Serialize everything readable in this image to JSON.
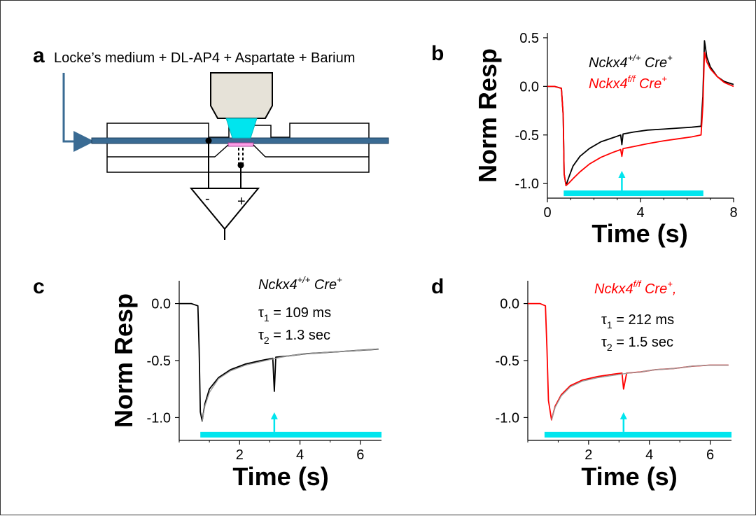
{
  "panel_labels": {
    "a": "a",
    "b": "b",
    "c": "c",
    "d": "d"
  },
  "schematic": {
    "solution_label": "Locke’s medium + DL-AP4 + Aspartate + Barium",
    "amp_minus": "-",
    "amp_plus": "+",
    "colors": {
      "objective": "#e6e2d8",
      "light": "#00e5ee",
      "perfusion": "#3a6b93",
      "tissue": "#ff9ee8"
    }
  },
  "legend": {
    "wt": {
      "gene": "Nckx4",
      "sup": "+/+",
      "cre": " Cre",
      "cre_sup": "+",
      "color": "#000000"
    },
    "ko": {
      "gene": "Nckx4",
      "sup": "f/f",
      "cre": " Cre",
      "cre_sup": "+",
      "color": "#ff0000"
    },
    "ko_d_suffix": ","
  },
  "fits": {
    "c": {
      "tau1_sym": "τ",
      "tau1_sub": "1",
      "tau1_text": " = 109 ms",
      "tau2_sym": "τ",
      "tau2_sub": "2",
      "tau2_text": " = 1.3 sec"
    },
    "d": {
      "tau1_sym": "τ",
      "tau1_sub": "1",
      "tau1_text": " = 212 ms",
      "tau2_sym": "τ",
      "tau2_sub": "2",
      "tau2_text": " = 1.5 sec"
    }
  },
  "chart_data": [
    {
      "panel": "b",
      "type": "line",
      "xlabel": "Time (s)",
      "ylabel": "Norm Resp",
      "xlim": [
        0,
        8
      ],
      "ylim": [
        -1.15,
        0.55
      ],
      "xticks": [
        0,
        4,
        8
      ],
      "yticks": [
        0.5,
        0.0,
        -0.5,
        -1.0
      ],
      "ytick_labels": [
        "0.5",
        "0.0",
        "-0.5",
        "-1.0"
      ],
      "stimulus": {
        "start": 0.7,
        "end": 6.7,
        "y": -1.1,
        "color": "#00e5ee"
      },
      "arrow": {
        "x": 3.2,
        "color": "#00e5ee"
      },
      "series": [
        {
          "name": "Nckx4+/+ Cre+",
          "color": "#000000",
          "x": [
            0,
            0.3,
            0.6,
            0.68,
            0.72,
            0.8,
            0.9,
            1.1,
            1.4,
            1.8,
            2.3,
            2.8,
            3.15,
            3.2,
            3.25,
            3.7,
            4.3,
            5.0,
            5.6,
            6.2,
            6.6,
            6.68,
            6.75,
            6.85,
            7.0,
            7.3,
            7.6,
            8.0
          ],
          "y": [
            0.0,
            0.0,
            -0.02,
            -0.3,
            -0.9,
            -1.02,
            -0.95,
            -0.82,
            -0.72,
            -0.64,
            -0.57,
            -0.53,
            -0.5,
            -0.6,
            -0.49,
            -0.47,
            -0.45,
            -0.44,
            -0.43,
            -0.42,
            -0.41,
            -0.1,
            0.47,
            0.3,
            0.2,
            0.1,
            0.05,
            0.02
          ]
        },
        {
          "name": "Nckx4f/f Cre+",
          "color": "#ff0000",
          "x": [
            0,
            0.3,
            0.6,
            0.68,
            0.72,
            0.8,
            0.9,
            1.1,
            1.4,
            1.8,
            2.3,
            2.8,
            3.15,
            3.2,
            3.25,
            3.7,
            4.3,
            5.0,
            5.6,
            6.2,
            6.6,
            6.68,
            6.75,
            6.85,
            7.0,
            7.3,
            7.6,
            8.0
          ],
          "y": [
            0.0,
            0.0,
            -0.02,
            -0.3,
            -0.9,
            -1.02,
            -1.0,
            -0.95,
            -0.88,
            -0.8,
            -0.73,
            -0.68,
            -0.65,
            -0.72,
            -0.64,
            -0.62,
            -0.59,
            -0.56,
            -0.54,
            -0.52,
            -0.5,
            -0.2,
            0.35,
            0.25,
            0.18,
            0.1,
            0.04,
            0.0
          ]
        }
      ]
    },
    {
      "panel": "c",
      "type": "line",
      "xlabel": "Time (s)",
      "ylabel": "Norm Resp",
      "xlim": [
        0,
        6.7
      ],
      "ylim": [
        -1.2,
        0.2
      ],
      "xticks": [
        2,
        4,
        6
      ],
      "yticks": [
        0.0,
        -0.5,
        -1.0
      ],
      "ytick_labels": [
        "0.0",
        "-0.5",
        "-1.0"
      ],
      "stimulus": {
        "start": 0.7,
        "end": 6.7,
        "y": -1.15,
        "color": "#00e5ee"
      },
      "arrow": {
        "x": 3.15,
        "color": "#00e5ee"
      },
      "series": [
        {
          "name": "Nckx4+/+ Cre+",
          "color": "#000000",
          "x": [
            0,
            0.4,
            0.62,
            0.66,
            0.7,
            0.76,
            0.85,
            1.0,
            1.3,
            1.7,
            2.2,
            2.7,
            3.1,
            3.15,
            3.2,
            3.6,
            4.2,
            4.8,
            5.4,
            6.0,
            6.6
          ],
          "y": [
            0.0,
            0.0,
            -0.02,
            -0.4,
            -0.95,
            -1.03,
            -0.88,
            -0.75,
            -0.65,
            -0.58,
            -0.53,
            -0.5,
            -0.48,
            -0.77,
            -0.47,
            -0.46,
            -0.44,
            -0.43,
            -0.42,
            -0.41,
            -0.4
          ]
        },
        {
          "name": "fit",
          "color": "#999999",
          "x": [
            0.76,
            0.85,
            1.0,
            1.3,
            1.7,
            2.2,
            2.7,
            3.2,
            3.6,
            4.2,
            4.8,
            5.4,
            6.0,
            6.6
          ],
          "y": [
            -1.03,
            -0.9,
            -0.78,
            -0.66,
            -0.59,
            -0.54,
            -0.51,
            -0.48,
            -0.46,
            -0.44,
            -0.43,
            -0.42,
            -0.41,
            -0.4
          ]
        }
      ]
    },
    {
      "panel": "d",
      "type": "line",
      "xlabel": "Time (s)",
      "ylabel": "",
      "xlim": [
        0,
        6.7
      ],
      "ylim": [
        -1.2,
        0.2
      ],
      "xticks": [
        2,
        4,
        6
      ],
      "yticks": [
        0.0,
        -0.5,
        -1.0
      ],
      "ytick_labels": [
        "0.0",
        "-0.5",
        "-1.0"
      ],
      "stimulus": {
        "start": 0.55,
        "end": 6.7,
        "y": -1.15,
        "color": "#00e5ee"
      },
      "arrow": {
        "x": 3.15,
        "color": "#00e5ee"
      },
      "series": [
        {
          "name": "Nckx4f/f Cre+,",
          "color": "#ff0000",
          "x": [
            0,
            0.4,
            0.58,
            0.63,
            0.68,
            0.78,
            0.9,
            1.1,
            1.4,
            1.8,
            2.3,
            2.8,
            3.1,
            3.15,
            3.25,
            3.7,
            4.2,
            4.8,
            5.4,
            6.0,
            6.6
          ],
          "y": [
            0.0,
            0.0,
            -0.02,
            -0.4,
            -0.85,
            -1.02,
            -0.9,
            -0.8,
            -0.72,
            -0.67,
            -0.64,
            -0.62,
            -0.61,
            -0.75,
            -0.61,
            -0.6,
            -0.58,
            -0.57,
            -0.55,
            -0.54,
            -0.54
          ]
        },
        {
          "name": "fit",
          "color": "#999999",
          "x": [
            0.78,
            0.9,
            1.1,
            1.4,
            1.8,
            2.3,
            2.8,
            3.3,
            3.7,
            4.2,
            4.8,
            5.4,
            6.0,
            6.6
          ],
          "y": [
            -1.02,
            -0.91,
            -0.81,
            -0.73,
            -0.68,
            -0.65,
            -0.63,
            -0.61,
            -0.6,
            -0.58,
            -0.57,
            -0.55,
            -0.54,
            -0.54
          ]
        }
      ]
    }
  ]
}
